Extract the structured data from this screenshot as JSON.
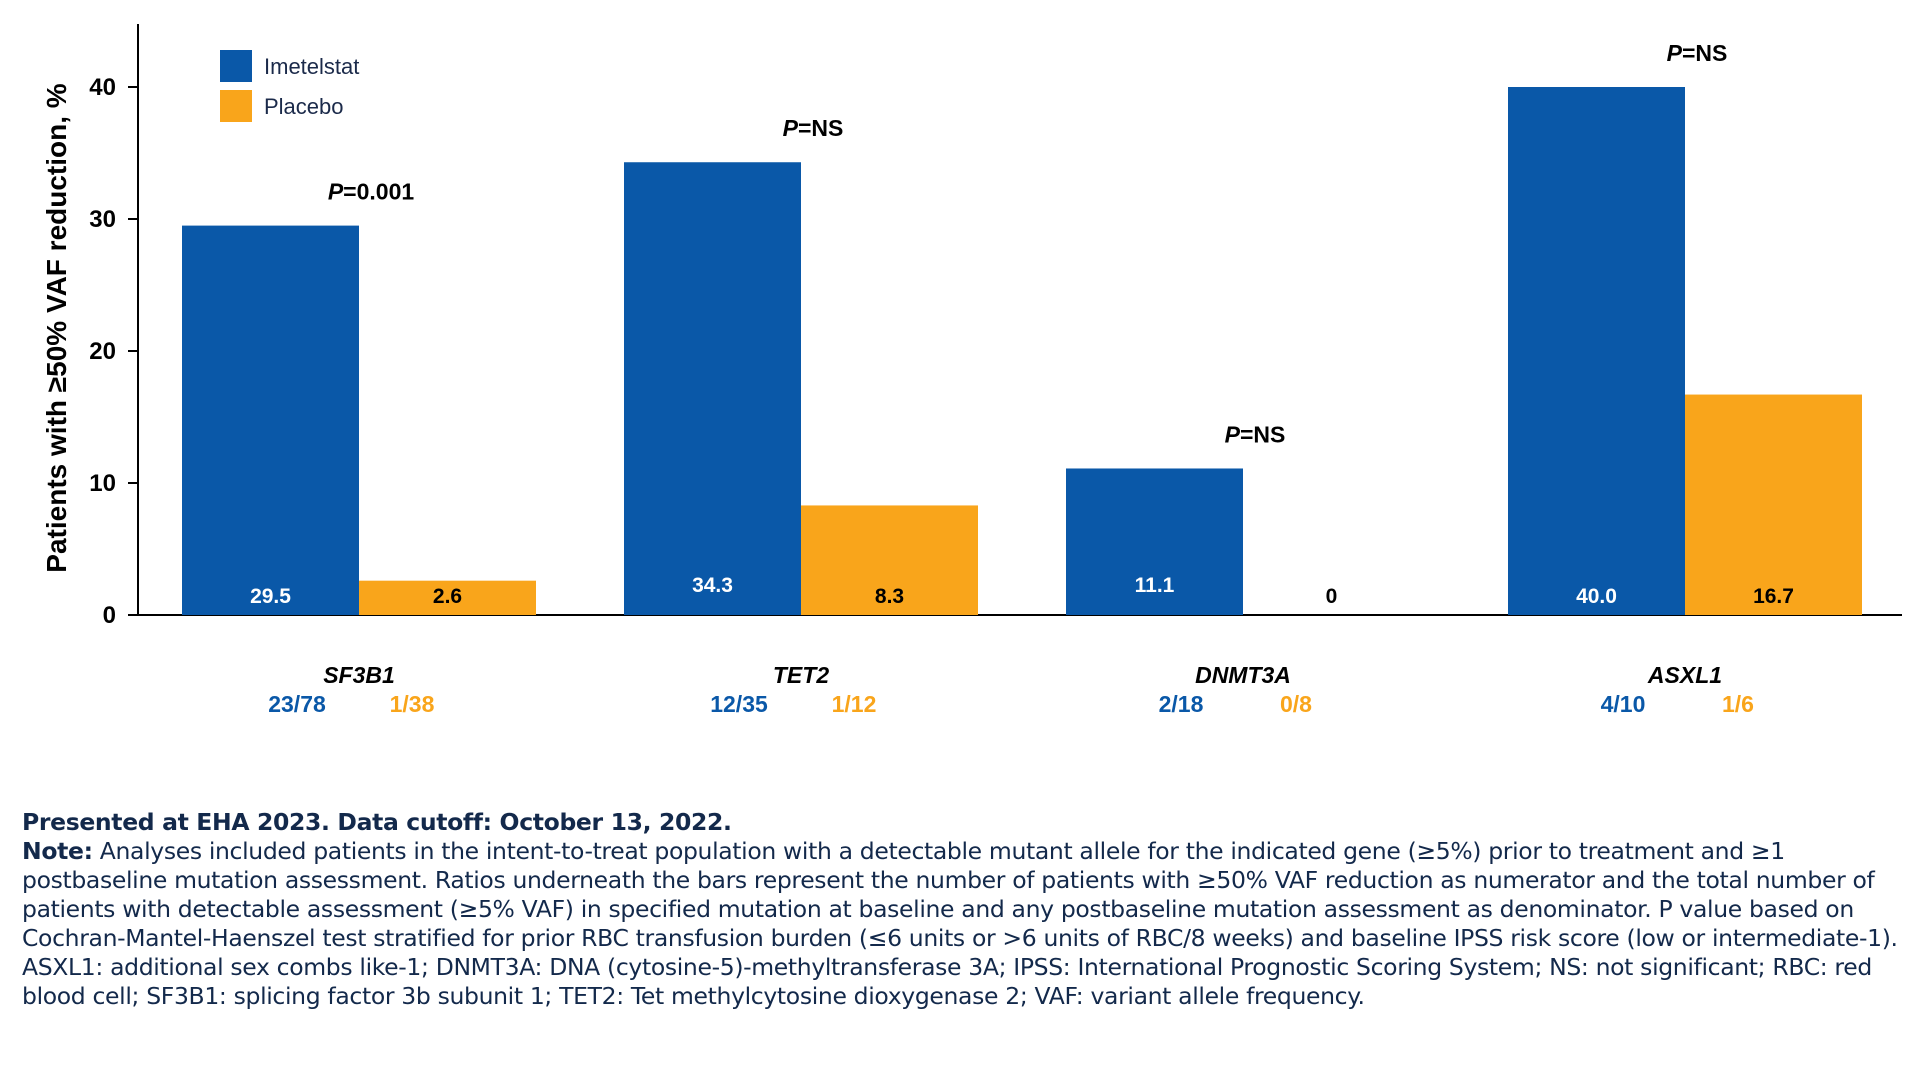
{
  "chart_data": {
    "type": "bar",
    "ylabel": "Patients with ≥50% VAF reduction, %",
    "ylim": [
      0,
      45
    ],
    "yticks": [
      0,
      10,
      20,
      30,
      40
    ],
    "categories": [
      "SF3B1",
      "TET2",
      "DNMT3A",
      "ASXL1"
    ],
    "series": [
      {
        "name": "Imetelstat",
        "color": "#0a58a8",
        "values": [
          29.5,
          34.3,
          11.1,
          40.0
        ],
        "labels": [
          "29.5",
          "34.3",
          "11.1",
          "40.0"
        ],
        "ratios": [
          "23/78",
          "12/35",
          "2/18",
          "4/10"
        ]
      },
      {
        "name": "Placebo",
        "color": "#f9a51b",
        "values": [
          2.6,
          8.3,
          0,
          16.7
        ],
        "labels": [
          "2.6",
          "8.3",
          "0",
          "16.7"
        ],
        "ratios": [
          "1/38",
          "1/12",
          "0/8",
          "1/6"
        ]
      }
    ],
    "pvalues": [
      {
        "italic": "P",
        "rest": "=0.001"
      },
      {
        "italic": "P",
        "rest": "=NS"
      },
      {
        "italic": "P",
        "rest": "=NS"
      },
      {
        "italic": "P",
        "rest": "=NS"
      }
    ],
    "legend_position": "top-left",
    "grid": false
  },
  "footnotes": {
    "presented": "Presented at EHA 2023. Data cutoff: October 13, 2022.",
    "note_label": "Note:",
    "note_text": " Analyses included patients in the intent-to-treat population with a detectable mutant allele for the indicated gene (≥5%) prior to treatment and ≥1 postbaseline mutation assessment. Ratios underneath the bars represent the number of patients with ≥50% VAF reduction as numerator and the total number of patients with detectable assessment (≥5% VAF) in specified mutation at baseline and any postbaseline mutation assessment as denominator. P value based on Cochran-Mantel-Haenszel test stratified for prior RBC transfusion burden (≤6 units or >6 units of RBC/8 weeks) and baseline IPSS risk score (low or intermediate-1).",
    "abbreviations": "ASXL1: additional sex combs like-1; DNMT3A: DNA (cytosine-5)-methyltransferase 3A; IPSS: International Prognostic Scoring System; NS: not significant; RBC: red blood cell; SF3B1: splicing factor 3b subunit 1; TET2: Tet methylcytosine dioxygenase 2; VAF: variant allele frequency."
  }
}
